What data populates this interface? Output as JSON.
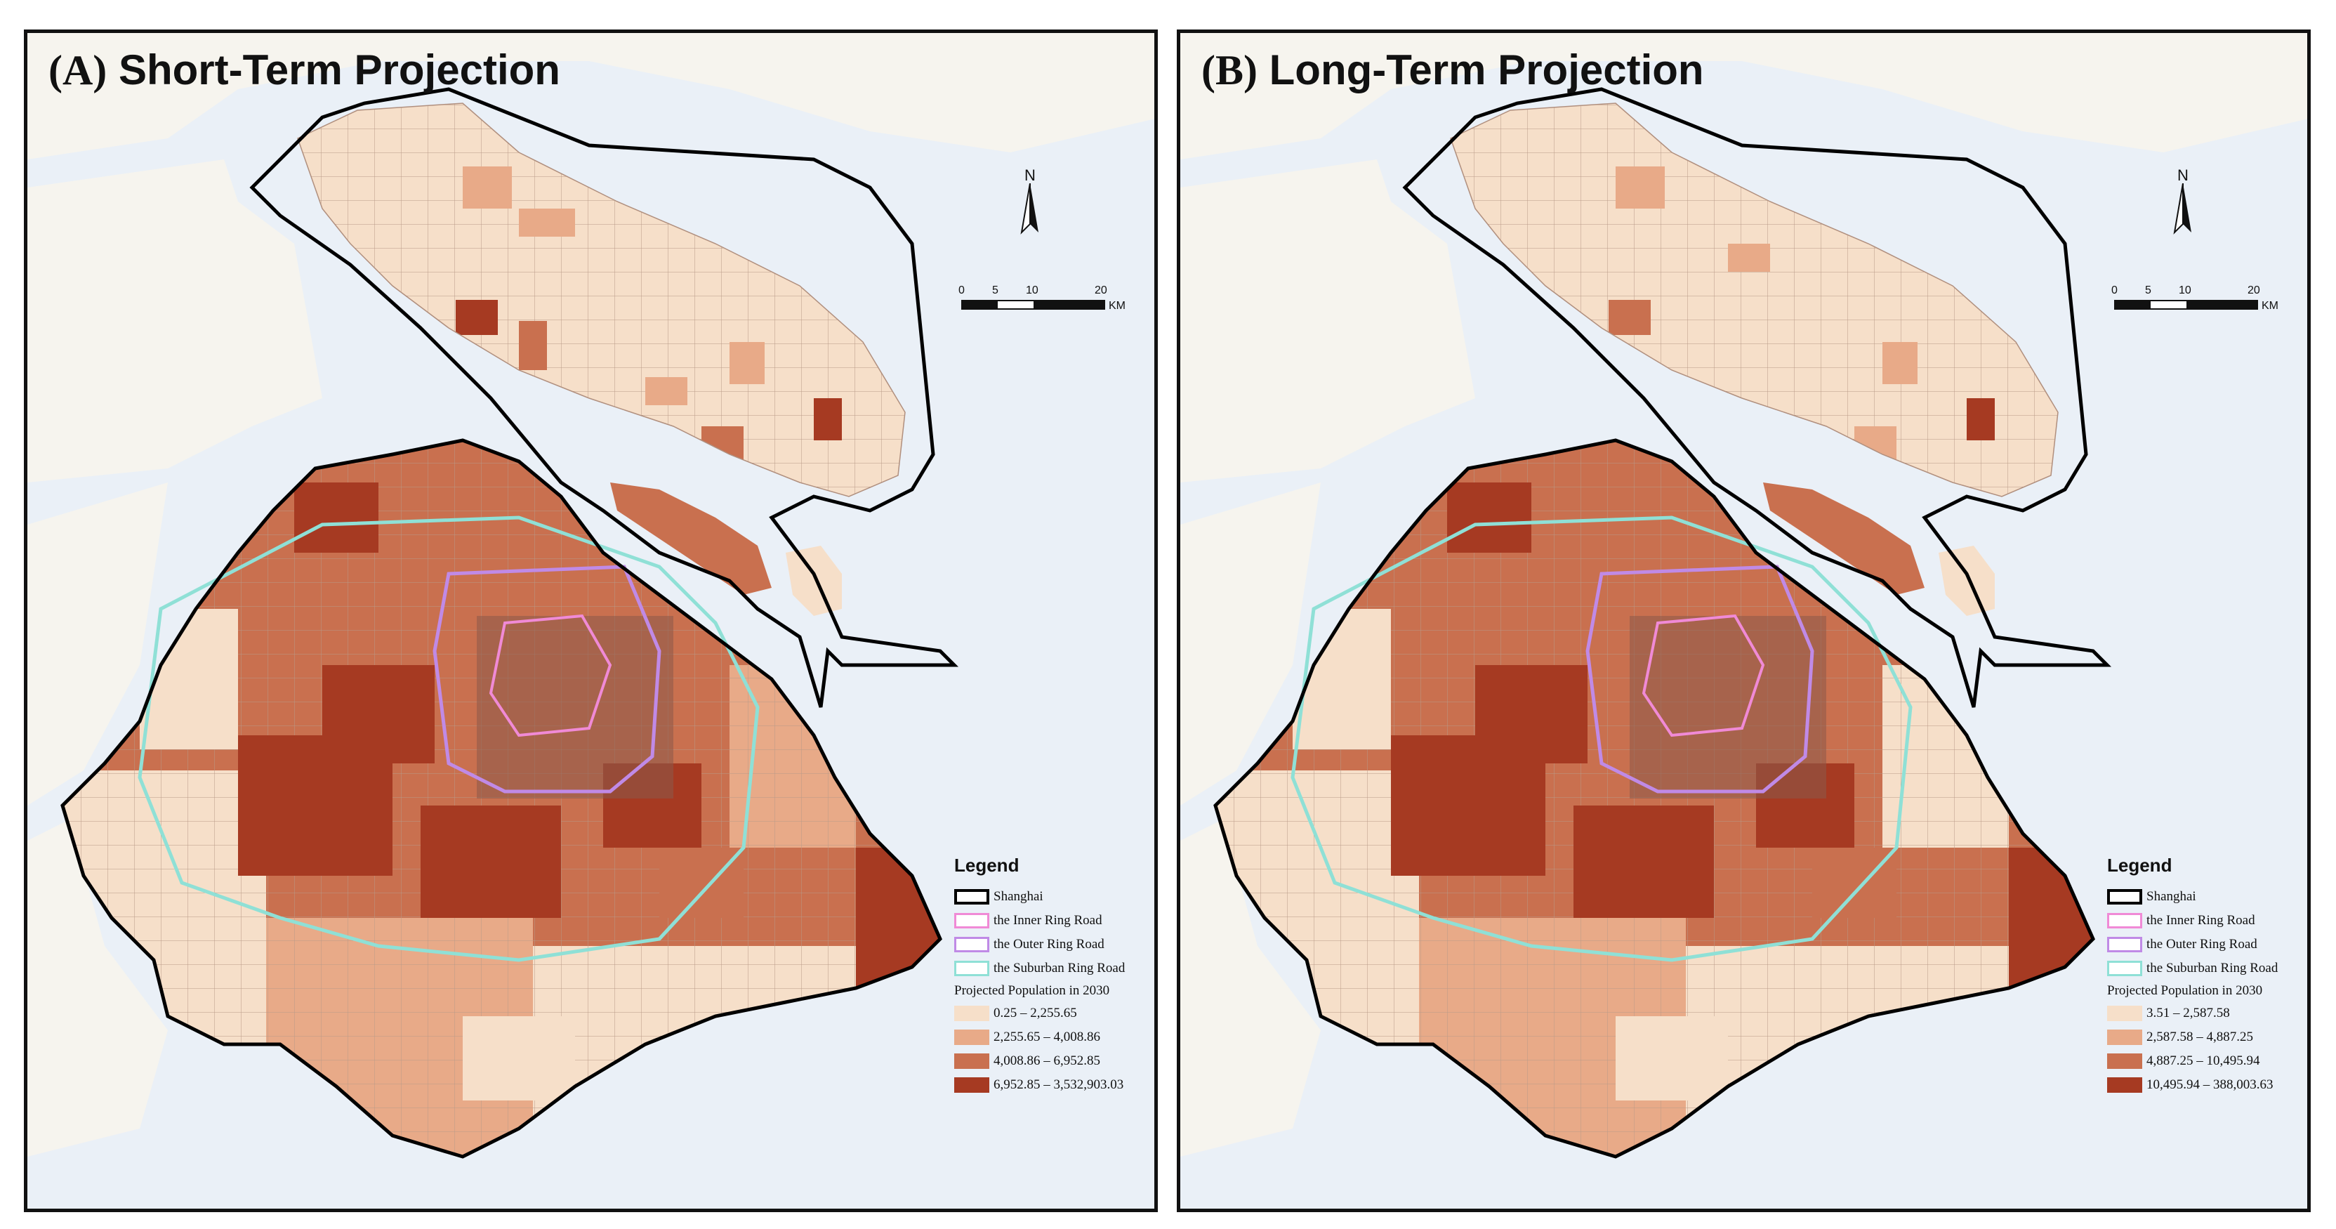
{
  "colors": {
    "water": "#eaf0f7",
    "land_bg": "#f6f4ee",
    "class1": "#f6dfc9",
    "class2": "#e8aa88",
    "class3": "#c9704f",
    "class4": "#a63a22",
    "boundary": "#000000",
    "inner_ring": "#f08ad6",
    "outer_ring": "#c08ae6",
    "suburban_ring": "#8fe0d6"
  },
  "panels": [
    {
      "tag": "(A)",
      "title": "Short-Term Projection",
      "north_label": "N",
      "scale": {
        "ticks": [
          "0",
          "5",
          "10",
          "20"
        ],
        "unit": "KM"
      },
      "legend": {
        "title": "Legend",
        "boundary": "Shanghai",
        "inner_ring": "the Inner Ring Road",
        "outer_ring": "the Outer Ring Road",
        "suburban_ring": "the Suburban Ring Road",
        "classes_title": "Projected Population in 2030",
        "classes": [
          "0.25 – 2,255.65",
          "2,255.65 – 4,008.86",
          "4,008.86 – 6,952.85",
          "6,952.85 – 3,532,903.03"
        ]
      }
    },
    {
      "tag": "(B)",
      "title": "Long-Term Projection",
      "north_label": "N",
      "scale": {
        "ticks": [
          "0",
          "5",
          "10",
          "20"
        ],
        "unit": "KM"
      },
      "legend": {
        "title": "Legend",
        "boundary": "Shanghai",
        "inner_ring": "the Inner Ring Road",
        "outer_ring": "the Outer Ring Road",
        "suburban_ring": "the Suburban Ring Road",
        "classes_title": "Projected Population in 2030",
        "classes": [
          "3.51 – 2,587.58",
          "2,587.58 – 4,887.25",
          "4,887.25 – 10,495.94",
          "10,495.94 – 388,003.63"
        ]
      }
    }
  ]
}
